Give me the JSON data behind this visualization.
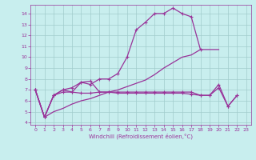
{
  "xlabel": "Windchill (Refroidissement éolien,°C)",
  "xlim": [
    -0.5,
    23.5
  ],
  "ylim": [
    3.8,
    14.8
  ],
  "yticks": [
    4,
    5,
    6,
    7,
    8,
    9,
    10,
    11,
    12,
    13,
    14
  ],
  "xticks": [
    0,
    1,
    2,
    3,
    4,
    5,
    6,
    7,
    8,
    9,
    10,
    11,
    12,
    13,
    14,
    15,
    16,
    17,
    18,
    19,
    20,
    21,
    22,
    23
  ],
  "bg_color": "#c8eeee",
  "grid_color": "#a0cccc",
  "line_color": "#993399",
  "line1_x": [
    0,
    1,
    2,
    3,
    4,
    5,
    6,
    7,
    8,
    9,
    10,
    11,
    12,
    13,
    14,
    15,
    16,
    17,
    18
  ],
  "line1_y": [
    7.0,
    4.5,
    6.5,
    7.0,
    6.8,
    7.7,
    7.5,
    8.0,
    8.0,
    8.5,
    10.0,
    12.5,
    13.2,
    14.0,
    14.0,
    14.5,
    14.0,
    13.7,
    10.7
  ],
  "line2_x": [
    0,
    1,
    2,
    3,
    4,
    5,
    6,
    7,
    8,
    9,
    10,
    11,
    12,
    13,
    14,
    15,
    16,
    17,
    18,
    19,
    20
  ],
  "line2_y": [
    7.0,
    4.5,
    5.0,
    5.3,
    5.7,
    6.0,
    6.2,
    6.5,
    6.8,
    7.0,
    7.3,
    7.6,
    7.9,
    8.4,
    9.0,
    9.5,
    10.0,
    10.2,
    10.7,
    10.7,
    10.7
  ],
  "line3_x": [
    0,
    1,
    2,
    3,
    4,
    5,
    6,
    7,
    8,
    9,
    10,
    11,
    12,
    13,
    14,
    15,
    16,
    17,
    18,
    19,
    20,
    21,
    22
  ],
  "line3_y": [
    7.0,
    4.5,
    6.5,
    6.8,
    6.8,
    6.7,
    6.7,
    6.8,
    6.8,
    6.7,
    6.7,
    6.7,
    6.7,
    6.7,
    6.7,
    6.7,
    6.7,
    6.6,
    6.5,
    6.5,
    7.2,
    5.5,
    6.5
  ],
  "line4_x": [
    0,
    1,
    2,
    3,
    4,
    5,
    6,
    7,
    8,
    9,
    10,
    11,
    12,
    13,
    14,
    15,
    16,
    17,
    18,
    19,
    20,
    21,
    22
  ],
  "line4_y": [
    7.0,
    4.5,
    6.5,
    7.0,
    7.2,
    7.7,
    7.8,
    6.8,
    6.8,
    6.8,
    6.8,
    6.8,
    6.8,
    6.8,
    6.8,
    6.8,
    6.8,
    6.8,
    6.5,
    6.5,
    7.5,
    5.5,
    6.5
  ]
}
